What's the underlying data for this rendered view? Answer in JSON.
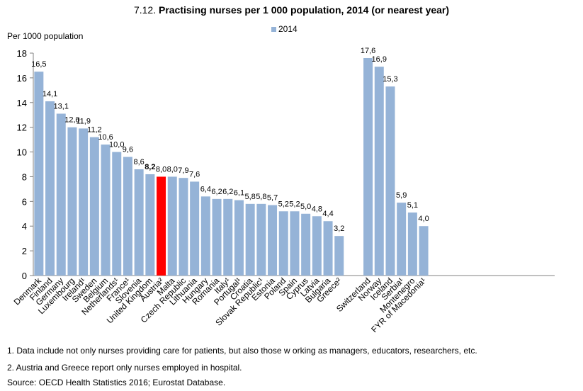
{
  "title": {
    "number": "7.12.",
    "text": "Practising nurses per 1 000 population,  2014 (or nearest year)"
  },
  "chart_data": {
    "type": "bar",
    "ylabel": "Per 1000 population",
    "ylim": [
      0,
      18
    ],
    "yticks": [
      0,
      2,
      4,
      6,
      8,
      10,
      12,
      14,
      16,
      18
    ],
    "legend": {
      "label": "2014",
      "position": "top-center"
    },
    "grid": false,
    "colors": {
      "bar": "#95b3d7",
      "highlight": "#ff0000"
    },
    "groups": [
      {
        "categories": [
          "Denmark",
          "Finland",
          "Germany",
          "Luxembourg",
          "Ireland¹",
          "Sweden",
          "Belgium",
          "Netherlands¹",
          "France¹",
          "Slovenia",
          "United Kingdom",
          "Austria²",
          "Malta",
          "Czech Republic",
          "Lithuania",
          "Hungary",
          "Romania",
          "Italy¹",
          "Portugal¹",
          "Croatia",
          "Slovak Republic¹",
          "Estonia",
          "Poland",
          "Spain",
          "Cyprus",
          "Latvia",
          "Bulgaria",
          "Greece²"
        ],
        "values": [
          16.5,
          14.1,
          13.1,
          12.0,
          11.9,
          11.2,
          10.6,
          10.0,
          9.6,
          8.6,
          8.2,
          8.0,
          8.0,
          7.9,
          7.6,
          6.4,
          6.2,
          6.2,
          6.1,
          5.8,
          5.8,
          5.7,
          5.2,
          5.2,
          5.0,
          4.8,
          4.4,
          3.2
        ],
        "labels": [
          "16,5",
          "14,1",
          "13,1",
          "12,0",
          "11,9",
          "11,2",
          "10,6",
          "10,0",
          "9,6",
          "8,6",
          "8,2",
          "8,0",
          "8,0",
          "7,9",
          "7,6",
          "6,4",
          "6,2",
          "6,2",
          "6,1",
          "5,8",
          "5,8",
          "5,7",
          "5,2",
          "5,2",
          "5,0",
          "4,8",
          "4,4",
          "3,2"
        ]
      },
      {
        "categories": [
          "Switzerland",
          "Norway",
          "Iceland",
          "Serbia¹",
          "Montenegro",
          "FYR of Macedonia¹"
        ],
        "values": [
          17.6,
          16.9,
          15.3,
          5.9,
          5.1,
          4.0
        ],
        "labels": [
          "17,6",
          "16,9",
          "15,3",
          "5,9",
          "5,1",
          "4,0"
        ]
      }
    ],
    "highlighted_category": "Austria²",
    "bold_label_category": "United Kingdom"
  },
  "notes": [
    "1. Data include not only nurses providing care for patients, but also those w orking as managers, educators, researchers, etc.",
    "2. Austria and Greece report only nurses employed in hospital."
  ],
  "source": "Source: OECD Health Statistics 2016; Eurostat Database."
}
